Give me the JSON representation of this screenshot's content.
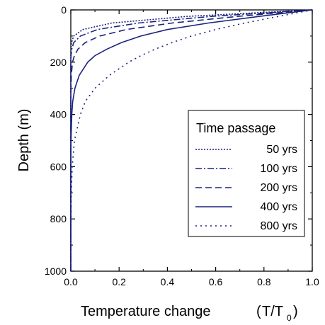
{
  "chart_data": {
    "type": "line",
    "xlabel": "Temperature change",
    "xlabel_unit_prefix": "T/T",
    "xlabel_unit_subscript": "0",
    "ylabel": "Depth (m)",
    "xlim": [
      0.0,
      1.0
    ],
    "ylim": [
      0,
      1000
    ],
    "y_inverted": true,
    "x_ticks": [
      "0.0",
      "0.2",
      "0.4",
      "0.6",
      "0.8",
      "1.0"
    ],
    "x_tick_values": [
      0.0,
      0.2,
      0.4,
      0.6,
      0.8,
      1.0
    ],
    "y_ticks": [
      "0",
      "200",
      "400",
      "600",
      "800",
      "1000"
    ],
    "y_tick_values": [
      0,
      200,
      400,
      600,
      800,
      1000
    ],
    "grid": false,
    "legend": {
      "title": "Time passage",
      "placement": "right-center"
    },
    "line_color": "#1a237e",
    "depth": [
      0,
      25,
      50,
      75,
      100,
      125,
      150,
      175,
      200,
      250,
      300,
      350,
      400,
      500,
      600,
      700,
      800,
      900,
      1000
    ],
    "series": [
      {
        "name": "50 yrs",
        "dash": "dotted-dense",
        "values": [
          1.0,
          0.48,
          0.17,
          0.05,
          0.012,
          0.003,
          0.001,
          0,
          0,
          0,
          0,
          0,
          0,
          0,
          0,
          0,
          0,
          0,
          0
        ]
      },
      {
        "name": "100 yrs",
        "dash": "dash-dot",
        "values": [
          1.0,
          0.58,
          0.28,
          0.11,
          0.04,
          0.012,
          0.004,
          0.001,
          0,
          0,
          0,
          0,
          0,
          0,
          0,
          0,
          0,
          0,
          0
        ]
      },
      {
        "name": "200 yrs",
        "dash": "dashed",
        "values": [
          1.0,
          0.69,
          0.42,
          0.23,
          0.12,
          0.06,
          0.03,
          0.015,
          0.007,
          0.002,
          0.001,
          0,
          0,
          0,
          0,
          0,
          0,
          0,
          0
        ]
      },
      {
        "name": "400 yrs",
        "dash": "solid",
        "values": [
          1.0,
          0.78,
          0.57,
          0.4,
          0.29,
          0.21,
          0.15,
          0.1,
          0.07,
          0.035,
          0.017,
          0.008,
          0.004,
          0.001,
          0,
          0,
          0,
          0,
          0
        ]
      },
      {
        "name": "800 yrs",
        "dash": "dotted-sparse",
        "values": [
          1.0,
          0.86,
          0.72,
          0.6,
          0.5,
          0.42,
          0.35,
          0.29,
          0.24,
          0.16,
          0.1,
          0.06,
          0.04,
          0.015,
          0.006,
          0.002,
          0.001,
          0,
          0
        ]
      }
    ]
  }
}
